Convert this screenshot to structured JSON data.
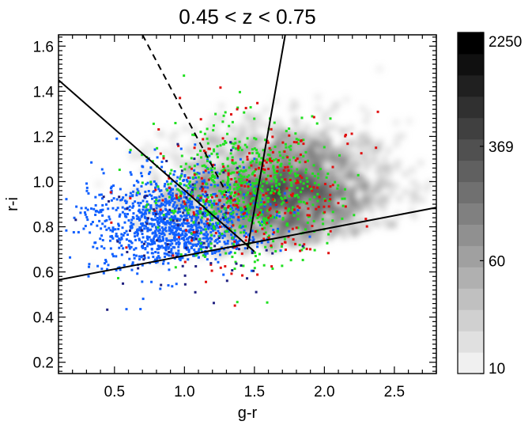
{
  "chart_data": {
    "type": "scatter",
    "title": "0.45 < z < 0.75",
    "xlabel": "g-r",
    "ylabel": "r-i",
    "xlim": [
      0.1,
      2.8
    ],
    "ylim": [
      0.15,
      1.65
    ],
    "x_ticks": [
      0.5,
      1.0,
      1.5,
      2.0,
      2.5
    ],
    "x_tick_labels": [
      "0.5",
      "1.0",
      "1.5",
      "2.0",
      "2.5"
    ],
    "y_ticks": [
      0.2,
      0.4,
      0.6,
      0.8,
      1.0,
      1.2,
      1.4,
      1.6
    ],
    "y_tick_labels": [
      "0.2",
      "0.4",
      "0.6",
      "0.8",
      "1.0",
      "1.2",
      "1.4",
      "1.6"
    ],
    "grid": false,
    "density_background": {
      "description_colormap": "grayscale, log scaled counts",
      "center": [
        1.7,
        0.95
      ],
      "colorbar": {
        "labels": [
          "10",
          "60",
          "369",
          "2250"
        ],
        "min": 10,
        "max": 2250,
        "levels": 16,
        "scale": "log",
        "color_low": "#f0f0f0",
        "color_high": "#000000"
      }
    },
    "series": [
      {
        "color": "#1060ff",
        "center": [
          0.95,
          0.8
        ],
        "spread": [
          0.3,
          0.12
        ],
        "count": 1400
      },
      {
        "color": "#20e020",
        "center": [
          1.45,
          0.96
        ],
        "spread": [
          0.3,
          0.15
        ],
        "count": 650
      },
      {
        "color": "#e01010",
        "center": [
          1.5,
          0.95
        ],
        "spread": [
          0.35,
          0.16
        ],
        "count": 260
      },
      {
        "color": "#202080",
        "center": [
          1.0,
          0.8
        ],
        "spread": [
          0.35,
          0.15
        ],
        "count": 90
      }
    ],
    "lines": [
      {
        "style": "solid",
        "x": [
          0.1,
          2.8
        ],
        "y": [
          0.565,
          0.885
        ]
      },
      {
        "style": "solid",
        "x": [
          0.1,
          1.5
        ],
        "y": [
          1.45,
          0.69
        ]
      },
      {
        "style": "solid",
        "x": [
          1.45,
          1.72
        ],
        "y": [
          0.7,
          1.65
        ]
      },
      {
        "style": "dashed",
        "x": [
          0.7,
          1.3
        ],
        "y": [
          1.65,
          0.95
        ]
      }
    ]
  }
}
